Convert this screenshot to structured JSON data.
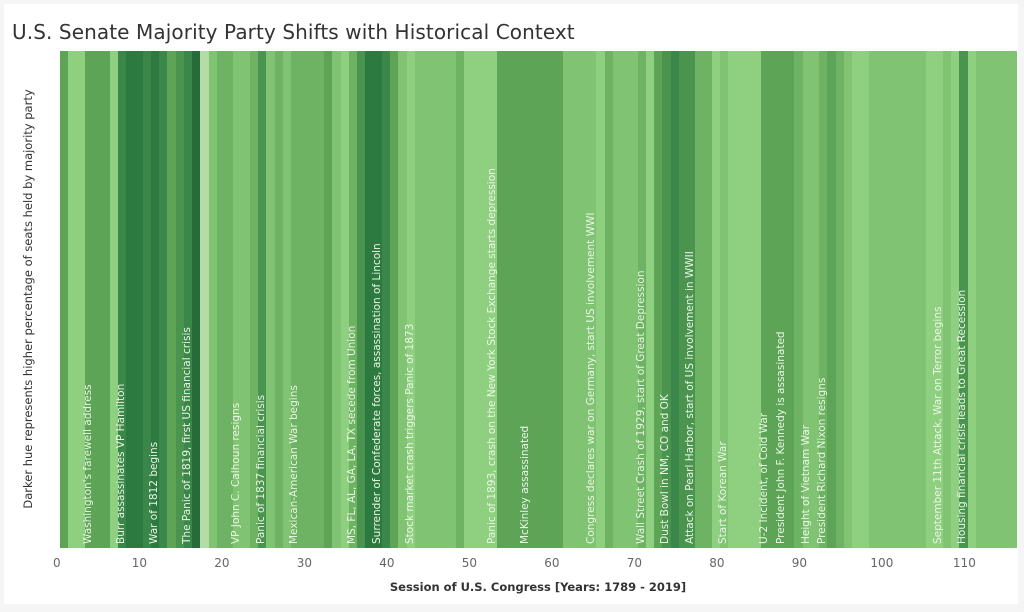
{
  "header": {
    "title": "U.S. Senate Majority Party Shifts with Historical Context"
  },
  "chart_data": {
    "type": "heatmap",
    "title": "U.S. Senate Majority Party Shifts with Historical Context",
    "xlabel": "Session of U.S. Congress [Years: 1789 - 2019]",
    "ylabel": "Darker hue represents higher percentage of seats held by majority party",
    "x_ticks": [
      0,
      10,
      20,
      30,
      40,
      50,
      60,
      70,
      80,
      90,
      100,
      110
    ],
    "xlim": [
      1,
      116
    ],
    "palette": [
      "#b3dca6",
      "#8fcf80",
      "#80c473",
      "#6db363",
      "#5ea457",
      "#4a9450",
      "#3b8749",
      "#2d7a40",
      "#276b3a"
    ],
    "sessions": [
      {
        "session": 1,
        "level": 4
      },
      {
        "session": 2,
        "level": 1
      },
      {
        "session": 3,
        "level": 1
      },
      {
        "session": 4,
        "level": 4
      },
      {
        "session": 5,
        "level": 4
      },
      {
        "session": 6,
        "level": 4
      },
      {
        "session": 7,
        "level": 1
      },
      {
        "session": 8,
        "level": 6
      },
      {
        "session": 9,
        "level": 7
      },
      {
        "session": 10,
        "level": 7
      },
      {
        "session": 11,
        "level": 6
      },
      {
        "session": 12,
        "level": 7
      },
      {
        "session": 13,
        "level": 6
      },
      {
        "session": 14,
        "level": 4
      },
      {
        "session": 15,
        "level": 5
      },
      {
        "session": 16,
        "level": 6
      },
      {
        "session": 17,
        "level": 8
      },
      {
        "session": 18,
        "level": 0
      },
      {
        "session": 19,
        "level": 2
      },
      {
        "session": 20,
        "level": 3
      },
      {
        "session": 21,
        "level": 3
      },
      {
        "session": 22,
        "level": 2
      },
      {
        "session": 23,
        "level": 2
      },
      {
        "session": 24,
        "level": 3
      },
      {
        "session": 25,
        "level": 5
      },
      {
        "session": 26,
        "level": 2
      },
      {
        "session": 27,
        "level": 3
      },
      {
        "session": 28,
        "level": 2
      },
      {
        "session": 29,
        "level": 3
      },
      {
        "session": 30,
        "level": 3
      },
      {
        "session": 31,
        "level": 3
      },
      {
        "session": 32,
        "level": 3
      },
      {
        "session": 33,
        "level": 4
      },
      {
        "session": 34,
        "level": 2
      },
      {
        "session": 35,
        "level": 1
      },
      {
        "session": 36,
        "level": 3
      },
      {
        "session": 37,
        "level": 5
      },
      {
        "session": 38,
        "level": 7
      },
      {
        "session": 39,
        "level": 7
      },
      {
        "session": 40,
        "level": 6
      },
      {
        "session": 41,
        "level": 4
      },
      {
        "session": 42,
        "level": 2
      },
      {
        "session": 43,
        "level": 1
      },
      {
        "session": 44,
        "level": 2
      },
      {
        "session": 45,
        "level": 2
      },
      {
        "session": 46,
        "level": 2
      },
      {
        "session": 47,
        "level": 2
      },
      {
        "session": 48,
        "level": 2
      },
      {
        "session": 49,
        "level": 3
      },
      {
        "session": 50,
        "level": 1
      },
      {
        "session": 51,
        "level": 1
      },
      {
        "session": 52,
        "level": 1
      },
      {
        "session": 53,
        "level": 1
      },
      {
        "session": 54,
        "level": 4
      },
      {
        "session": 55,
        "level": 4
      },
      {
        "session": 56,
        "level": 4
      },
      {
        "session": 57,
        "level": 4
      },
      {
        "session": 58,
        "level": 4
      },
      {
        "session": 59,
        "level": 4
      },
      {
        "session": 60,
        "level": 4
      },
      {
        "session": 61,
        "level": 4
      },
      {
        "session": 62,
        "level": 2
      },
      {
        "session": 63,
        "level": 2
      },
      {
        "session": 64,
        "level": 2
      },
      {
        "session": 65,
        "level": 2
      },
      {
        "session": 66,
        "level": 1
      },
      {
        "session": 67,
        "level": 3
      },
      {
        "session": 68,
        "level": 2
      },
      {
        "session": 69,
        "level": 2
      },
      {
        "session": 70,
        "level": 2
      },
      {
        "session": 71,
        "level": 3
      },
      {
        "session": 72,
        "level": 1
      },
      {
        "session": 73,
        "level": 4
      },
      {
        "session": 74,
        "level": 5
      },
      {
        "session": 75,
        "level": 6
      },
      {
        "session": 76,
        "level": 5
      },
      {
        "session": 77,
        "level": 5
      },
      {
        "session": 78,
        "level": 3
      },
      {
        "session": 79,
        "level": 3
      },
      {
        "session": 80,
        "level": 1
      },
      {
        "session": 81,
        "level": 2
      },
      {
        "session": 82,
        "level": 1
      },
      {
        "session": 83,
        "level": 1
      },
      {
        "session": 84,
        "level": 1
      },
      {
        "session": 85,
        "level": 1
      },
      {
        "session": 86,
        "level": 4
      },
      {
        "session": 87,
        "level": 4
      },
      {
        "session": 88,
        "level": 4
      },
      {
        "session": 89,
        "level": 4
      },
      {
        "session": 90,
        "level": 3
      },
      {
        "session": 91,
        "level": 2
      },
      {
        "session": 92,
        "level": 2
      },
      {
        "session": 93,
        "level": 3
      },
      {
        "session": 94,
        "level": 4
      },
      {
        "session": 95,
        "level": 3
      },
      {
        "session": 96,
        "level": 2
      },
      {
        "session": 97,
        "level": 1
      },
      {
        "session": 98,
        "level": 1
      },
      {
        "session": 99,
        "level": 2
      },
      {
        "session": 100,
        "level": 2
      },
      {
        "session": 101,
        "level": 2
      },
      {
        "session": 102,
        "level": 2
      },
      {
        "session": 103,
        "level": 2
      },
      {
        "session": 104,
        "level": 2
      },
      {
        "session": 105,
        "level": 2
      },
      {
        "session": 106,
        "level": 1
      },
      {
        "session": 107,
        "level": 1
      },
      {
        "session": 108,
        "level": 2
      },
      {
        "session": 109,
        "level": 1
      },
      {
        "session": 110,
        "level": 5
      },
      {
        "session": 111,
        "level": 1
      },
      {
        "session": 112,
        "level": 2
      },
      {
        "session": 113,
        "level": 2
      },
      {
        "session": 114,
        "level": 2
      },
      {
        "session": 115,
        "level": 2
      },
      {
        "session": 116,
        "level": 2
      }
    ],
    "events": [
      {
        "session": 4,
        "label": "Washington's farewell address"
      },
      {
        "session": 8,
        "label": "Burr assassinates VP Hamilton"
      },
      {
        "session": 12,
        "label": "War of 1812 begins"
      },
      {
        "session": 16,
        "label": "The Panic of 1819, first US financial crisis"
      },
      {
        "session": 22,
        "label": "VP John C. Calhoun resigns"
      },
      {
        "session": 25,
        "label": "Panic of 1837 financial crisis"
      },
      {
        "session": 29,
        "label": "Mexican-American War begins"
      },
      {
        "session": 36,
        "label": "MS, FL, AL, GA, LA, TX secede from Union"
      },
      {
        "session": 39,
        "label": "Surrender of Confederate forces, assassination of Lincoln"
      },
      {
        "session": 43,
        "label": "Stock market crash triggers Panic of 1873"
      },
      {
        "session": 53,
        "label": "Panic of 1893, crash on the New York Stock Exchange starts depression"
      },
      {
        "session": 57,
        "label": "McKinley assassinated"
      },
      {
        "session": 65,
        "label": "Congress declares war on Germany, start US involvement WWI"
      },
      {
        "session": 71,
        "label": "Wall Street Crash of 1929, start of Great Depression"
      },
      {
        "session": 74,
        "label": "Dust Bowl in NM, CO and OK"
      },
      {
        "session": 77,
        "label": "Attack on Pearl Harbor, start of US involvement in WWII"
      },
      {
        "session": 81,
        "label": "Start of Korean War"
      },
      {
        "session": 86,
        "label": "U-2 Incident, of Cold War"
      },
      {
        "session": 88,
        "label": "President John F. Kennedy is assasinated"
      },
      {
        "session": 91,
        "label": "Height of Vietnam War"
      },
      {
        "session": 93,
        "label": "President Richard Nixon resigns"
      },
      {
        "session": 107,
        "label": "September 11th Attack, War on Terror begins"
      },
      {
        "session": 110,
        "label": "Housing financial crisis leads to Great Recession"
      }
    ]
  },
  "axis": {
    "x_label": "Session of U.S. Congress [Years: 1789 - 2019]",
    "y_label": "Darker hue represents higher percentage of seats held by majority party",
    "ticks": [
      "0",
      "10",
      "20",
      "30",
      "40",
      "50",
      "60",
      "70",
      "80",
      "90",
      "100",
      "110"
    ]
  }
}
